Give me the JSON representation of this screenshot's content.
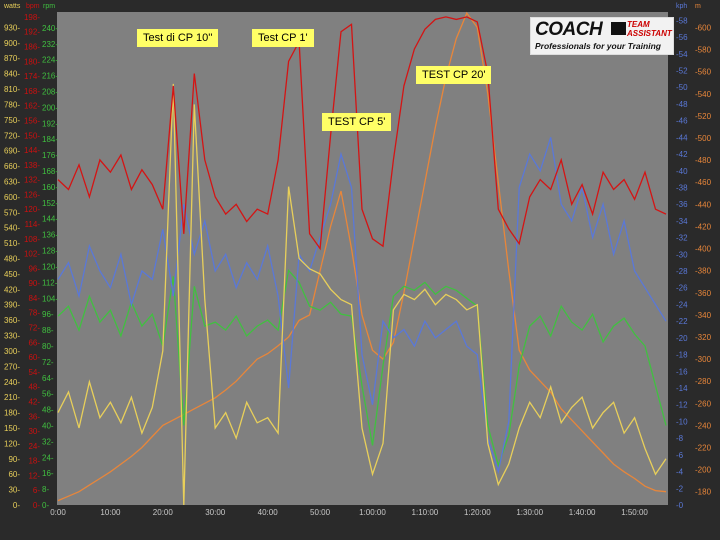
{
  "chart_data": {
    "type": "line",
    "x_unit": "minutes",
    "x": [
      0,
      2,
      4,
      6,
      8,
      10,
      12,
      14,
      16,
      18,
      20,
      22,
      24,
      26,
      28,
      30,
      32,
      34,
      36,
      38,
      40,
      42,
      44,
      46,
      48,
      50,
      52,
      54,
      56,
      58,
      60,
      62,
      64,
      66,
      68,
      70,
      72,
      74,
      76,
      78,
      80,
      82,
      84,
      86,
      88,
      90,
      92,
      94,
      96,
      98,
      100,
      102,
      104,
      106,
      108,
      110,
      112,
      114,
      116
    ],
    "xlim": [
      0,
      116
    ],
    "x_ticks": [
      "0:00",
      "10:00",
      "20:00",
      "30:00",
      "40:00",
      "50:00",
      "1:00:00",
      "1:10:00",
      "1:20:00",
      "1:30:00",
      "1:40:00",
      "1:50:00"
    ],
    "grid": false,
    "axes": [
      {
        "id": "watts",
        "label": "watts",
        "side": "left",
        "color": "#e8cf5a",
        "range": [
          0,
          960
        ],
        "ticks": [
          0,
          30,
          60,
          90,
          120,
          150,
          180,
          210,
          240,
          270,
          300,
          330,
          360,
          390,
          420,
          450,
          480,
          510,
          540,
          570,
          600,
          630,
          660,
          690,
          720,
          750,
          780,
          810,
          840,
          870,
          900,
          930
        ]
      },
      {
        "id": "bpm",
        "label": "bpm",
        "side": "left",
        "color": "#cc1010",
        "range": [
          0,
          200
        ],
        "ticks": [
          0,
          6,
          12,
          18,
          24,
          30,
          36,
          42,
          48,
          54,
          60,
          66,
          72,
          78,
          84,
          90,
          96,
          102,
          108,
          114,
          120,
          126,
          132,
          138,
          144,
          150,
          156,
          162,
          168,
          174,
          180,
          186,
          192,
          198
        ]
      },
      {
        "id": "rpm",
        "label": "rpm",
        "side": "left",
        "color": "#40c040",
        "range": [
          0,
          248
        ],
        "ticks": [
          0,
          8,
          16,
          24,
          32,
          40,
          48,
          56,
          64,
          72,
          80,
          88,
          96,
          104,
          112,
          120,
          128,
          136,
          144,
          152,
          160,
          168,
          176,
          184,
          192,
          200,
          208,
          216,
          224,
          232,
          240
        ]
      },
      {
        "id": "kph",
        "label": "kph",
        "side": "right",
        "color": "#5a78d8",
        "range": [
          0,
          59
        ],
        "ticks": [
          0,
          2,
          4,
          6,
          8,
          10,
          12,
          14,
          16,
          18,
          20,
          22,
          24,
          26,
          28,
          30,
          32,
          34,
          36,
          38,
          40,
          42,
          44,
          46,
          48,
          50,
          52,
          54,
          56,
          58
        ]
      },
      {
        "id": "m",
        "label": "m",
        "side": "right",
        "color": "#e8863a",
        "range": [
          168,
          614
        ],
        "ticks": [
          180,
          200,
          220,
          240,
          260,
          280,
          300,
          320,
          340,
          360,
          380,
          400,
          420,
          440,
          460,
          480,
          500,
          520,
          540,
          560,
          580,
          600
        ]
      }
    ],
    "series": [
      {
        "axis": "m",
        "color": "#e8863a",
        "values": [
          172,
          176,
          180,
          186,
          192,
          198,
          205,
          212,
          220,
          230,
          240,
          245,
          250,
          255,
          260,
          265,
          272,
          280,
          290,
          300,
          305,
          312,
          320,
          335,
          340,
          380,
          420,
          452,
          400,
          340,
          308,
          300,
          315,
          360,
          410,
          460,
          510,
          555,
          590,
          613,
          600,
          540,
          460,
          380,
          308,
          290,
          280,
          270,
          255,
          245,
          235,
          225,
          215,
          205,
          198,
          192,
          185,
          181,
          180
        ]
      },
      {
        "axis": "rpm",
        "color": "#40c040",
        "values": [
          95,
          100,
          88,
          105,
          92,
          98,
          85,
          102,
          90,
          96,
          80,
          115,
          40,
          110,
          90,
          92,
          88,
          95,
          85,
          90,
          93,
          88,
          118,
          112,
          100,
          98,
          102,
          96,
          95,
          60,
          30,
          70,
          105,
          110,
          108,
          112,
          106,
          110,
          108,
          104,
          100,
          40,
          20,
          35,
          70,
          90,
          95,
          85,
          100,
          92,
          88,
          96,
          82,
          90,
          94,
          86,
          80,
          60,
          40
        ]
      },
      {
        "axis": "kph",
        "color": "#5a78d8",
        "values": [
          27,
          29,
          25,
          31,
          28,
          26,
          30,
          24,
          28,
          27,
          33,
          25,
          36,
          30,
          34,
          28,
          30,
          26,
          29,
          27,
          31,
          25,
          14,
          30,
          28,
          32,
          36,
          42,
          38,
          18,
          12,
          22,
          20,
          21,
          19,
          22,
          20,
          21,
          22,
          19,
          18,
          8,
          4,
          10,
          38,
          42,
          40,
          44,
          36,
          34,
          38,
          32,
          36,
          30,
          34,
          28,
          26,
          24,
          22
        ]
      },
      {
        "axis": "watts",
        "color": "#e8cf5a",
        "values": [
          180,
          220,
          150,
          240,
          170,
          200,
          160,
          210,
          140,
          190,
          300,
          820,
          0,
          780,
          400,
          150,
          180,
          130,
          200,
          160,
          170,
          140,
          620,
          480,
          460,
          450,
          420,
          400,
          390,
          150,
          60,
          120,
          380,
          410,
          400,
          420,
          390,
          410,
          400,
          380,
          390,
          120,
          40,
          80,
          150,
          200,
          170,
          230,
          160,
          190,
          210,
          150,
          180,
          200,
          140,
          170,
          110,
          60,
          90
        ]
      },
      {
        "axis": "bpm",
        "color": "#d41414",
        "values": [
          132,
          128,
          138,
          125,
          140,
          135,
          142,
          128,
          136,
          130,
          120,
          170,
          110,
          175,
          140,
          125,
          118,
          122,
          115,
          120,
          118,
          140,
          180,
          188,
          110,
          104,
          150,
          192,
          195,
          120,
          108,
          105,
          140,
          170,
          185,
          193,
          197,
          198,
          197,
          198,
          196,
          175,
          120,
          112,
          106,
          125,
          132,
          128,
          140,
          122,
          130,
          118,
          135,
          128,
          132,
          124,
          135,
          120,
          118
        ]
      }
    ],
    "annotations": [
      "Test di CP 10''",
      "Test CP 1'",
      "TEST CP 5'",
      "TEST CP 20'"
    ],
    "plot_background": "#808080"
  },
  "logo": {
    "brand": "COACH",
    "sub1": "TEAM",
    "sub2": "ASSISTANT",
    "tagline": "Professionals for your Training"
  }
}
